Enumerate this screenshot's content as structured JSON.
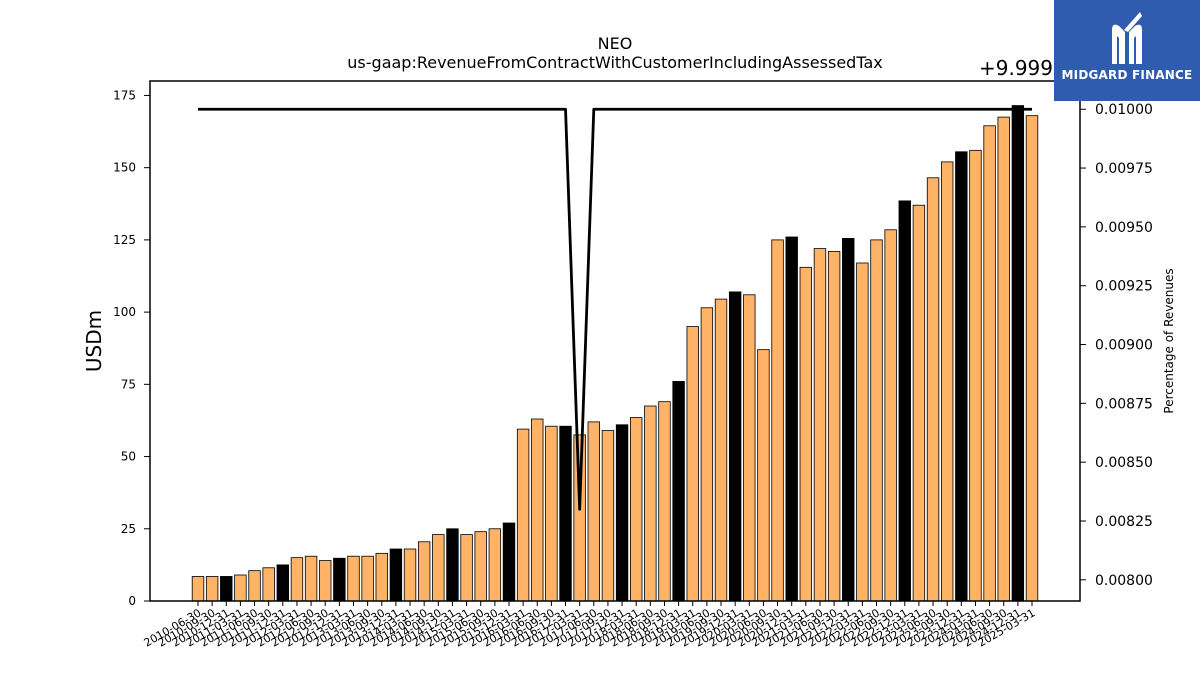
{
  "brand": {
    "name": "MIDGARD FINANCE",
    "color": "#2f5cae"
  },
  "chart_data": {
    "type": "bar",
    "title": "NEO",
    "subtitle": "us-gaap:RevenueFromContractWithCustomerIncludingAssessedTax",
    "ylabel": "USDm",
    "y2label": "Percentage of Revenues",
    "y2_offset_label": "+9.999",
    "ylim": [
      0,
      180
    ],
    "yticks": [
      0,
      25,
      50,
      75,
      100,
      125,
      150,
      175
    ],
    "y2lim": [
      0.00791,
      0.01012
    ],
    "y2ticks": [
      "0.00800",
      "0.00825",
      "0.00850",
      "0.00875",
      "0.00900",
      "0.00925",
      "0.00950",
      "0.00975",
      "0.01000"
    ],
    "y2tick_values": [
      0.008,
      0.00825,
      0.0085,
      0.00875,
      0.009,
      0.00925,
      0.0095,
      0.00975,
      0.01
    ],
    "colors": {
      "bar": "#ffb366",
      "bar_fy": "#000000",
      "line": "#000000"
    },
    "categories": [
      "2010-06-30",
      "2010-09-30",
      "2010-12-31",
      "2011-03-31",
      "2011-06-30",
      "2011-09-30",
      "2011-12-31",
      "2012-03-31",
      "2012-06-30",
      "2012-09-30",
      "2012-12-31",
      "2013-03-31",
      "2013-06-30",
      "2013-09-30",
      "2013-12-31",
      "2014-03-31",
      "2014-06-30",
      "2014-09-30",
      "2014-12-31",
      "2015-03-31",
      "2015-06-30",
      "2015-09-30",
      "2015-12-31",
      "2016-03-31",
      "2016-06-30",
      "2016-09-30",
      "2016-12-31",
      "2017-03-31",
      "2017-06-30",
      "2017-09-30",
      "2017-12-31",
      "2018-03-31",
      "2018-06-30",
      "2018-09-30",
      "2018-12-31",
      "2019-03-31",
      "2019-06-30",
      "2019-09-30",
      "2019-12-31",
      "2020-03-31",
      "2020-06-30",
      "2020-09-30",
      "2020-12-31",
      "2021-03-31",
      "2021-06-30",
      "2021-09-30",
      "2021-12-31",
      "2022-03-31",
      "2022-06-30",
      "2022-09-30",
      "2022-12-31",
      "2023-03-31",
      "2023-06-30",
      "2023-09-30",
      "2023-12-31",
      "2024-03-31",
      "2024-06-30",
      "2024-09-30",
      "2024-12-31",
      "2025-03-31"
    ],
    "values": [
      8.5,
      8.5,
      8.5,
      9,
      10.5,
      11.5,
      12.5,
      15,
      15.5,
      14,
      14.8,
      15.5,
      15.5,
      16.5,
      18,
      18,
      20.5,
      23,
      25,
      23,
      24,
      25,
      27,
      59.5,
      63,
      60.5,
      60.5,
      57.5,
      62,
      59,
      61,
      63.5,
      67.5,
      69,
      76,
      95,
      101.5,
      104.5,
      107,
      106,
      87,
      125,
      126,
      115.5,
      122,
      121,
      125.5,
      117,
      125,
      128.5,
      138.5,
      137,
      146.5,
      152,
      155.5,
      156,
      164.5,
      167.5,
      171.5,
      168
    ],
    "fiscal_year_end": [
      false,
      false,
      true,
      false,
      false,
      false,
      true,
      false,
      false,
      false,
      true,
      false,
      false,
      false,
      true,
      false,
      false,
      false,
      true,
      false,
      false,
      false,
      true,
      false,
      false,
      false,
      true,
      false,
      false,
      false,
      true,
      false,
      false,
      false,
      true,
      false,
      false,
      false,
      true,
      false,
      false,
      false,
      true,
      false,
      false,
      false,
      true,
      false,
      false,
      false,
      true,
      false,
      false,
      false,
      true,
      false,
      false,
      false,
      true,
      false
    ],
    "series": [
      {
        "name": "Percentage of Revenues",
        "values": [
          0.01,
          0.01,
          0.01,
          0.01,
          0.01,
          0.01,
          0.01,
          0.01,
          0.01,
          0.01,
          0.01,
          0.01,
          0.01,
          0.01,
          0.01,
          0.01,
          0.01,
          0.01,
          0.01,
          0.01,
          0.01,
          0.01,
          0.01,
          0.01,
          0.01,
          0.01,
          0.01,
          0.0083,
          0.01,
          0.01,
          0.01,
          0.01,
          0.01,
          0.01,
          0.01,
          0.01,
          0.01,
          0.01,
          0.01,
          0.01,
          0.01,
          0.01,
          0.01,
          0.01,
          0.01,
          0.01,
          0.01,
          0.01,
          0.01,
          0.01,
          0.01,
          0.01,
          0.01,
          0.01,
          0.01,
          0.01,
          0.01,
          0.01,
          0.01,
          0.01
        ]
      }
    ],
    "grid": false,
    "legend": "none"
  }
}
